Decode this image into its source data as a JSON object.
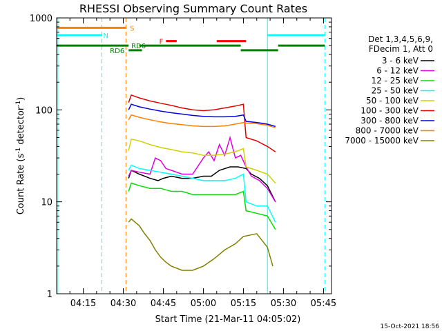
{
  "chart_data": {
    "type": "line",
    "title": "RHESSI Observing Summary Count Rates",
    "xlabel": "Start Time (21-Mar-11 04:05:02)",
    "ylabel_main": "Count Rate (s",
    "ylabel_sup": "-1",
    "ylabel_mid": " detector",
    "ylabel_end": ")",
    "y_scale": "log",
    "ylim": [
      1,
      1000
    ],
    "xlim": [
      "04:05:02",
      "05:48:00"
    ],
    "x_ticks": [
      "04:15",
      "04:30",
      "04:45",
      "05:00",
      "05:15",
      "05:30",
      "05:45"
    ],
    "y_ticks": [
      "1",
      "10",
      "100",
      "1000"
    ],
    "grid": false,
    "legend_position": "right",
    "legend_header": [
      "Det 1,3,4,5,6,9,",
      "FDecim 1, Att 0"
    ],
    "series": [
      {
        "name": "3 - 6 keV",
        "color": "#000000",
        "x": [
          "04:32:00",
          "04:33:00",
          "04:36:00",
          "04:40:00",
          "04:43:00",
          "04:45:00",
          "04:48:00",
          "04:52:00",
          "04:56:00",
          "05:00:00",
          "05:03:00",
          "05:06:00",
          "05:10:00",
          "05:13:00",
          "05:16:00",
          "05:18:00",
          "05:21:00",
          "05:24:00",
          "05:27:00"
        ],
        "values": [
          18,
          22,
          20,
          18,
          17,
          18,
          19,
          18,
          18,
          19,
          19,
          22,
          24,
          24,
          23,
          20,
          18,
          15,
          10
        ]
      },
      {
        "name": "6 - 12 keV",
        "color": "#e000e0",
        "x": [
          "04:32:00",
          "04:33:00",
          "04:36:00",
          "04:40:00",
          "04:42:00",
          "04:44:00",
          "04:46:00",
          "04:48:00",
          "04:52:00",
          "04:56:00",
          "05:00:00",
          "05:02:00",
          "05:04:00",
          "05:06:00",
          "05:08:00",
          "05:10:00",
          "05:12:00",
          "05:14:00",
          "05:16:00",
          "05:18:00",
          "05:21:00",
          "05:24:00",
          "05:27:00"
        ],
        "values": [
          19,
          22,
          21,
          20,
          30,
          28,
          23,
          22,
          20,
          20,
          30,
          35,
          28,
          42,
          32,
          50,
          30,
          32,
          24,
          19,
          17,
          14,
          10
        ]
      },
      {
        "name": "12 - 25 keV",
        "color": "#00e000",
        "x": [
          "04:32:00",
          "04:33:00",
          "04:36:00",
          "04:40:00",
          "04:44:00",
          "04:48:00",
          "04:52:00",
          "04:56:00",
          "05:00:00",
          "05:04:00",
          "05:08:00",
          "05:12:00",
          "05:15:00",
          "05:16:00",
          "05:20:00",
          "05:24:00",
          "05:27:00"
        ],
        "values": [
          13,
          16,
          15,
          14,
          14,
          13,
          13,
          12,
          12,
          12,
          12,
          12,
          13,
          8,
          7.5,
          7,
          5
        ]
      },
      {
        "name": "25 - 50 keV",
        "color": "#00ffff",
        "x": [
          "04:32:00",
          "04:33:00",
          "04:36:00",
          "04:40:00",
          "04:44:00",
          "04:48:00",
          "04:52:00",
          "04:56:00",
          "05:00:00",
          "05:04:00",
          "05:08:00",
          "05:12:00",
          "05:15:00",
          "05:16:00",
          "05:20:00",
          "05:24:00",
          "05:27:00"
        ],
        "values": [
          22,
          25,
          23,
          22,
          21,
          20,
          19,
          18,
          17,
          17,
          17,
          18,
          20,
          10,
          9,
          9,
          6
        ]
      },
      {
        "name": "50 - 100 keV",
        "color": "#d0d000",
        "x": [
          "04:32:00",
          "04:33:00",
          "04:36:00",
          "04:40:00",
          "04:44:00",
          "04:48:00",
          "04:52:00",
          "04:56:00",
          "05:00:00",
          "05:04:00",
          "05:08:00",
          "05:12:00",
          "05:15:00",
          "05:16:00",
          "05:20:00",
          "05:24:00",
          "05:27:00"
        ],
        "values": [
          36,
          48,
          46,
          42,
          39,
          37,
          35,
          34,
          32,
          32,
          33,
          35,
          38,
          24,
          22,
          20,
          16
        ]
      },
      {
        "name": "100 - 300 keV",
        "color": "#e00000",
        "x": [
          "04:32:00",
          "04:33:00",
          "04:36:00",
          "04:40:00",
          "04:44:00",
          "04:48:00",
          "04:52:00",
          "04:56:00",
          "05:00:00",
          "05:04:00",
          "05:08:00",
          "05:12:00",
          "05:15:00",
          "05:16:00",
          "05:20:00",
          "05:24:00",
          "05:27:00"
        ],
        "values": [
          120,
          145,
          135,
          125,
          118,
          112,
          105,
          100,
          98,
          100,
          105,
          110,
          115,
          50,
          46,
          40,
          35
        ]
      },
      {
        "name": "300 - 800 keV",
        "color": "#0000e0",
        "x": [
          "04:32:00",
          "04:33:00",
          "04:36:00",
          "04:40:00",
          "04:44:00",
          "04:48:00",
          "04:52:00",
          "04:56:00",
          "05:00:00",
          "05:04:00",
          "05:08:00",
          "05:12:00",
          "05:15:00",
          "05:16:00",
          "05:20:00",
          "05:24:00",
          "05:27:00"
        ],
        "values": [
          100,
          115,
          108,
          102,
          97,
          93,
          90,
          87,
          85,
          84,
          84,
          85,
          88,
          75,
          73,
          70,
          66
        ]
      },
      {
        "name": "800 - 7000 keV",
        "color": "#ff8000",
        "x": [
          "04:32:00",
          "04:33:00",
          "04:36:00",
          "04:40:00",
          "04:44:00",
          "04:48:00",
          "04:52:00",
          "04:56:00",
          "05:00:00",
          "05:04:00",
          "05:08:00",
          "05:12:00",
          "05:15:00",
          "05:16:00",
          "05:20:00",
          "05:24:00",
          "05:27:00"
        ],
        "values": [
          78,
          88,
          83,
          78,
          74,
          71,
          69,
          67,
          66,
          66,
          67,
          70,
          73,
          72,
          71,
          68,
          64
        ]
      },
      {
        "name": "7000 - 15000 keV",
        "color": "#808000",
        "x": [
          "04:32:00",
          "04:33:00",
          "04:36:00",
          "04:38:00",
          "04:40:00",
          "04:42:00",
          "04:44:00",
          "04:46:00",
          "04:48:00",
          "04:52:00",
          "04:56:00",
          "05:00:00",
          "05:04:00",
          "05:08:00",
          "05:12:00",
          "05:15:00",
          "05:20:00",
          "05:24:00",
          "05:26:00"
        ],
        "values": [
          6,
          6.5,
          5.5,
          4.5,
          3.8,
          3,
          2.5,
          2.2,
          2,
          1.8,
          1.8,
          2,
          2.4,
          3,
          3.5,
          4.2,
          4.5,
          3.2,
          2
        ]
      }
    ],
    "flag_bars": [
      {
        "label": "S",
        "color": "#ff8000",
        "row_value": 780,
        "segments": [
          [
            "04:05:02",
            "04:31:00"
          ]
        ],
        "label_x": "04:32:30"
      },
      {
        "label": "N",
        "color": "#00ffff",
        "row_value": 650,
        "segments": [
          [
            "04:05:02",
            "04:22:00"
          ],
          [
            "05:24:00",
            "05:45:30"
          ]
        ],
        "label_x": "04:22:30"
      },
      {
        "label": "F",
        "color": "#ff0000",
        "row_value": 560,
        "segments": [
          [
            "04:46:00",
            "04:50:00"
          ],
          [
            "05:05:00",
            "05:16:00"
          ]
        ],
        "label_x": "04:43:30"
      },
      {
        "label": "RD6",
        "color": "#008000",
        "row_value": 500,
        "segments": [
          [
            "04:05:02",
            "04:32:00"
          ],
          [
            "04:36:00",
            "05:14:00"
          ],
          [
            "05:28:00",
            "05:45:30"
          ]
        ],
        "label_x": "04:33:00"
      },
      {
        "label": "RD6",
        "color": "#008000",
        "row_value": 445,
        "segments": [
          [
            "04:32:00",
            "04:37:00"
          ],
          [
            "05:14:00",
            "05:28:00"
          ]
        ],
        "label_x": "04:25:00"
      }
    ],
    "vertical_markers": [
      {
        "x": "04:05:30",
        "color": "#00ffff",
        "style": "solid"
      },
      {
        "x": "04:22:00",
        "color": "#00ffff",
        "style": "dashed"
      },
      {
        "x": "04:31:00",
        "color": "#ff8000",
        "style": "dashed"
      },
      {
        "x": "05:24:00",
        "color": "#00ffff",
        "style": "solid"
      },
      {
        "x": "05:45:30",
        "color": "#00ffff",
        "style": "dashed"
      }
    ]
  },
  "footer": {
    "date_stamp": "15-Oct-2021 18:56"
  }
}
